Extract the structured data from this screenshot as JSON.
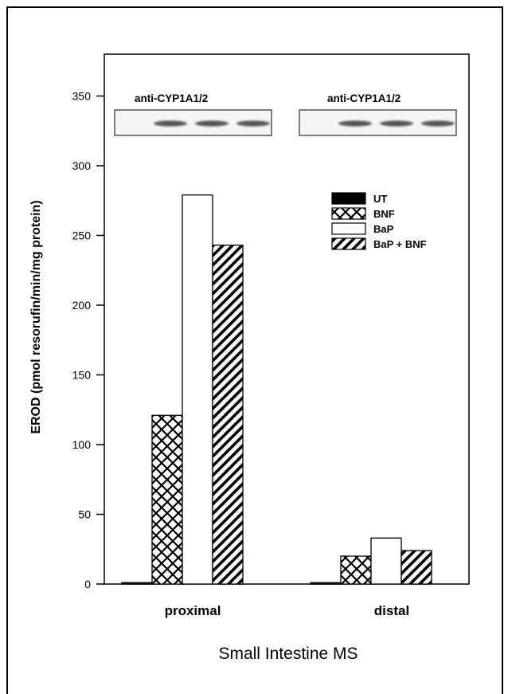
{
  "chart_data": {
    "type": "bar",
    "ylabel": "EROD (pmol resorufin/min/mg protein)",
    "xlabel": "Small Intestine MS",
    "categories": [
      "proximal",
      "distal"
    ],
    "ylim": [
      0,
      380
    ],
    "yticks": [
      0,
      50,
      100,
      150,
      200,
      250,
      300,
      350
    ],
    "series": [
      {
        "name": "UT",
        "values": [
          1,
          1
        ],
        "pattern": "solid"
      },
      {
        "name": "BNF",
        "values": [
          121,
          20
        ],
        "pattern": "crosshatch"
      },
      {
        "name": "BaP",
        "values": [
          279,
          33
        ],
        "pattern": "open"
      },
      {
        "name": "BaP + BNF",
        "values": [
          243,
          24
        ],
        "pattern": "diagonal"
      }
    ],
    "legend_position": "upper-right",
    "grid": false,
    "blots": [
      {
        "label": "anti-CYP1A1/2",
        "band_lanes": 3
      },
      {
        "label": "anti-CYP1A1/2",
        "band_lanes": 3
      }
    ]
  },
  "colors": {
    "ink": "#000000",
    "background": "#ffffff",
    "blot_band": "#555555"
  }
}
